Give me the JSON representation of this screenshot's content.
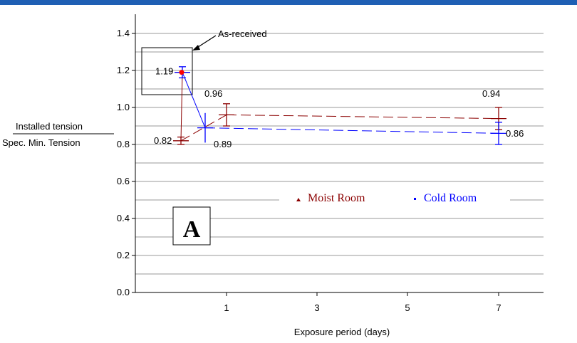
{
  "chart_data": {
    "type": "line",
    "xlabel": "Exposure period (days)",
    "ylabel_numerator": "Installed tension",
    "ylabel_denominator": "Spec. Min. Tension",
    "x_ticks": [
      1,
      3,
      5,
      7
    ],
    "ylim": [
      0.0,
      1.4
    ],
    "y_ticks": [
      "0.0",
      "0.2",
      "0.4",
      "0.6",
      "0.8",
      "1.0",
      "1.2",
      "1.4"
    ],
    "grid": "horizontal",
    "panel_label": "A",
    "as_received": {
      "label": "As-received",
      "value": 1.19,
      "value_label": "1.19",
      "color": "#ff0000"
    },
    "legend_position": "center",
    "series": [
      {
        "name": "Moist Room",
        "color": "#8b0000",
        "line_style": "dashed",
        "points": [
          {
            "x": -1.0,
            "y": 1.19,
            "err": 0.0
          },
          {
            "x": 0.0,
            "y": 0.82,
            "err": 0.02,
            "label": "0.82"
          },
          {
            "x": 1.0,
            "y": 0.96,
            "err": 0.06,
            "label": "0.96"
          },
          {
            "x": 7.0,
            "y": 0.94,
            "err": 0.06,
            "label": "0.94"
          }
        ]
      },
      {
        "name": "Cold Room",
        "color": "#0000ff",
        "line_style": "dashed",
        "points": [
          {
            "x": -1.0,
            "y": 1.19,
            "err": 0.03
          },
          {
            "x": 0.0,
            "y": 0.89,
            "err": 0.08,
            "label": "0.89"
          },
          {
            "x": 7.0,
            "y": 0.86,
            "err": 0.06,
            "label": "0.86"
          }
        ]
      }
    ]
  }
}
